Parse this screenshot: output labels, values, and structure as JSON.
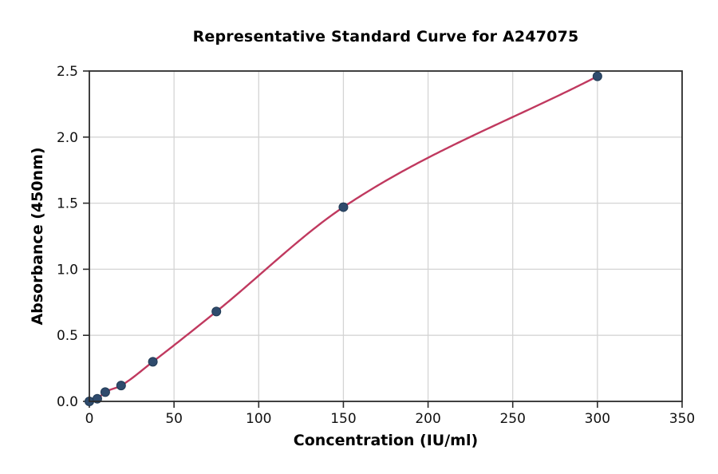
{
  "figure": {
    "background": "#ffffff"
  },
  "chart_data": {
    "type": "scatter",
    "title": "Representative Standard Curve for A247075",
    "xlabel": "Concentration (IU/ml)",
    "ylabel": "Absorbance (450nm)",
    "xlim": [
      0,
      350
    ],
    "ylim": [
      0,
      2.5
    ],
    "xticks": [
      0,
      50,
      100,
      150,
      200,
      250,
      300,
      350
    ],
    "yticks": [
      0.0,
      0.5,
      1.0,
      1.5,
      2.0,
      2.5
    ],
    "grid": true,
    "legend": "none",
    "series": [
      {
        "name": "standard-points",
        "type": "scatter",
        "x": [
          0,
          4.69,
          9.38,
          18.75,
          37.5,
          75,
          150,
          300
        ],
        "y": [
          0.0,
          0.02,
          0.07,
          0.12,
          0.3,
          0.68,
          1.47,
          2.46
        ],
        "marker_color": "#2f4b6d"
      },
      {
        "name": "fitted-curve",
        "type": "smooth-line-through-points",
        "line_color": "#c0395f"
      }
    ],
    "style": {
      "grid_color": "#d4d4d4",
      "frame_color": "#2b2b2b",
      "tick_color": "#2b2b2b",
      "tick_label_color": "#111111",
      "marker_edge_color": "#1d3click048",
      "curve_width": 2.4,
      "marker_radius": 5.5
    }
  }
}
